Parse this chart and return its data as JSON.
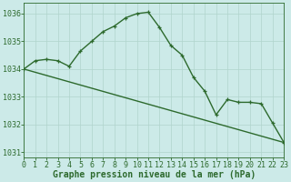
{
  "line1_x": [
    0,
    1,
    2,
    3,
    4,
    5,
    6,
    7,
    8,
    9,
    10,
    11,
    12,
    13,
    14,
    15,
    16,
    17,
    18,
    19,
    20,
    21,
    22,
    23
  ],
  "line1_y": [
    1034.0,
    1034.3,
    1034.35,
    1034.3,
    1034.1,
    1034.65,
    1035.0,
    1035.35,
    1035.55,
    1035.85,
    1036.0,
    1036.05,
    1035.5,
    1034.85,
    1034.5,
    1033.7,
    1033.2,
    1032.35,
    1032.9,
    1032.8,
    1032.8,
    1032.75,
    1032.05,
    1031.35
  ],
  "line2_x": [
    0,
    23
  ],
  "line2_y": [
    1034.0,
    1031.35
  ],
  "ylim": [
    1030.8,
    1036.4
  ],
  "xlim": [
    0,
    23
  ],
  "yticks": [
    1031,
    1032,
    1033,
    1034,
    1035,
    1036
  ],
  "xticks": [
    0,
    1,
    2,
    3,
    4,
    5,
    6,
    7,
    8,
    9,
    10,
    11,
    12,
    13,
    14,
    15,
    16,
    17,
    18,
    19,
    20,
    21,
    22,
    23
  ],
  "xlabel": "Graphe pression niveau de la mer (hPa)",
  "line_color": "#2d6a2d",
  "bg_color": "#cceae8",
  "grid_color": "#b0d4cc",
  "marker": "+",
  "linewidth": 1.0,
  "fontsize_label": 7.0,
  "fontsize_tick": 6.0
}
